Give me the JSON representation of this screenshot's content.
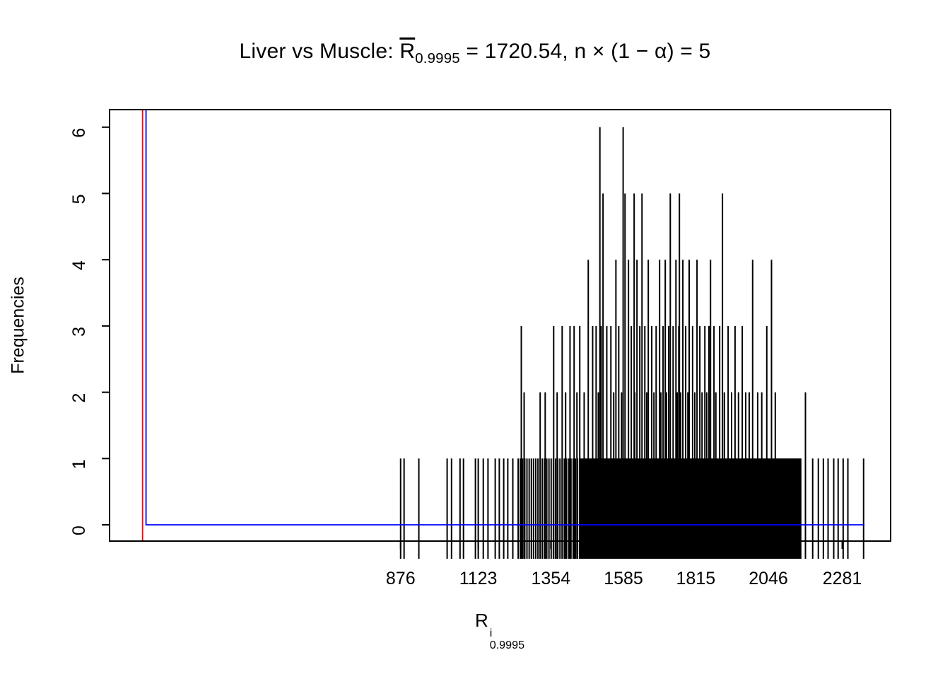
{
  "title": {
    "prefix": "Liver vs Muscle: ",
    "r_symbol": "R",
    "r_subscript": "0.9995",
    "after_r": " = 1720.54,  n × (1 − α) = 5"
  },
  "axes": {
    "y_label": "Frequencies",
    "x_label_base": "R",
    "x_label_sup": "i",
    "x_label_sub": "0.9995"
  },
  "chart_data": {
    "type": "bar",
    "subtype": "frequency-spike-plot",
    "title": "Liver vs Muscle: R̄0.9995 = 1720.54, n × (1 − α) = 5",
    "xlabel": "R^i 0.9995",
    "ylabel": "Frequencies",
    "xlim": [
      -50,
      2435
    ],
    "ylim": [
      0,
      6
    ],
    "x_ticks": [
      876,
      1123,
      1354,
      1585,
      1815,
      2046,
      2281
    ],
    "y_ticks": [
      0,
      1,
      2,
      3,
      4,
      5,
      6
    ],
    "grid": false,
    "legend": "none",
    "colors": {
      "spikes": "#000000",
      "box": "#000000",
      "reference_line_red": "#FF0000",
      "reference_line_blue": "#0000FF"
    },
    "reference_lines": {
      "red_vertical_x": 55,
      "blue_vertical_x": 66,
      "blue_horizontal_y": 0,
      "blue_horizontal_end_x": 2352
    },
    "spikes": {
      "f6": [
        1510,
        1584
      ],
      "f5": [
        1520,
        1590,
        1619,
        1644,
        1734,
        1763,
        1900
      ],
      "f4": [
        1473,
        1561,
        1601,
        1628,
        1664,
        1700,
        1718,
        1752,
        1774,
        1794,
        1819,
        1862,
        1996,
        2056
      ],
      "f3": [
        1260,
        1363,
        1390,
        1415,
        1428,
        1446,
        1487,
        1498,
        1514,
        1532,
        1545,
        1570,
        1610,
        1637,
        1653,
        1675,
        1689,
        1711,
        1729,
        1743,
        1761,
        1783,
        1805,
        1828,
        1844,
        1857,
        1873,
        1891,
        1918,
        1940,
        1963,
        2041
      ],
      "f2": [
        1269,
        1320,
        1336,
        1374,
        1401,
        1437,
        1460,
        1505,
        1554,
        1579,
        1621,
        1659,
        1682,
        1704,
        1722,
        1756,
        1767,
        1790,
        1812,
        1835,
        1850,
        1879,
        1906,
        1929,
        1951,
        1974,
        1985,
        2012,
        2025,
        2068,
        2164
      ],
      "f1": [
        876,
        887,
        934,
        1024,
        1038,
        1065,
        1076,
        1114,
        1123,
        1139,
        1154,
        1177,
        1190,
        1204,
        1217,
        1233,
        2187,
        2205,
        2221,
        2236,
        2254,
        2268,
        2284,
        2299,
        2349
      ]
    },
    "dense_bands": [
      {
        "from": 1250,
        "to": 1448,
        "step": 7,
        "freq": 1
      },
      {
        "from": 1450,
        "to": 2150,
        "step": 3,
        "freq": 1
      }
    ],
    "rug": true
  }
}
